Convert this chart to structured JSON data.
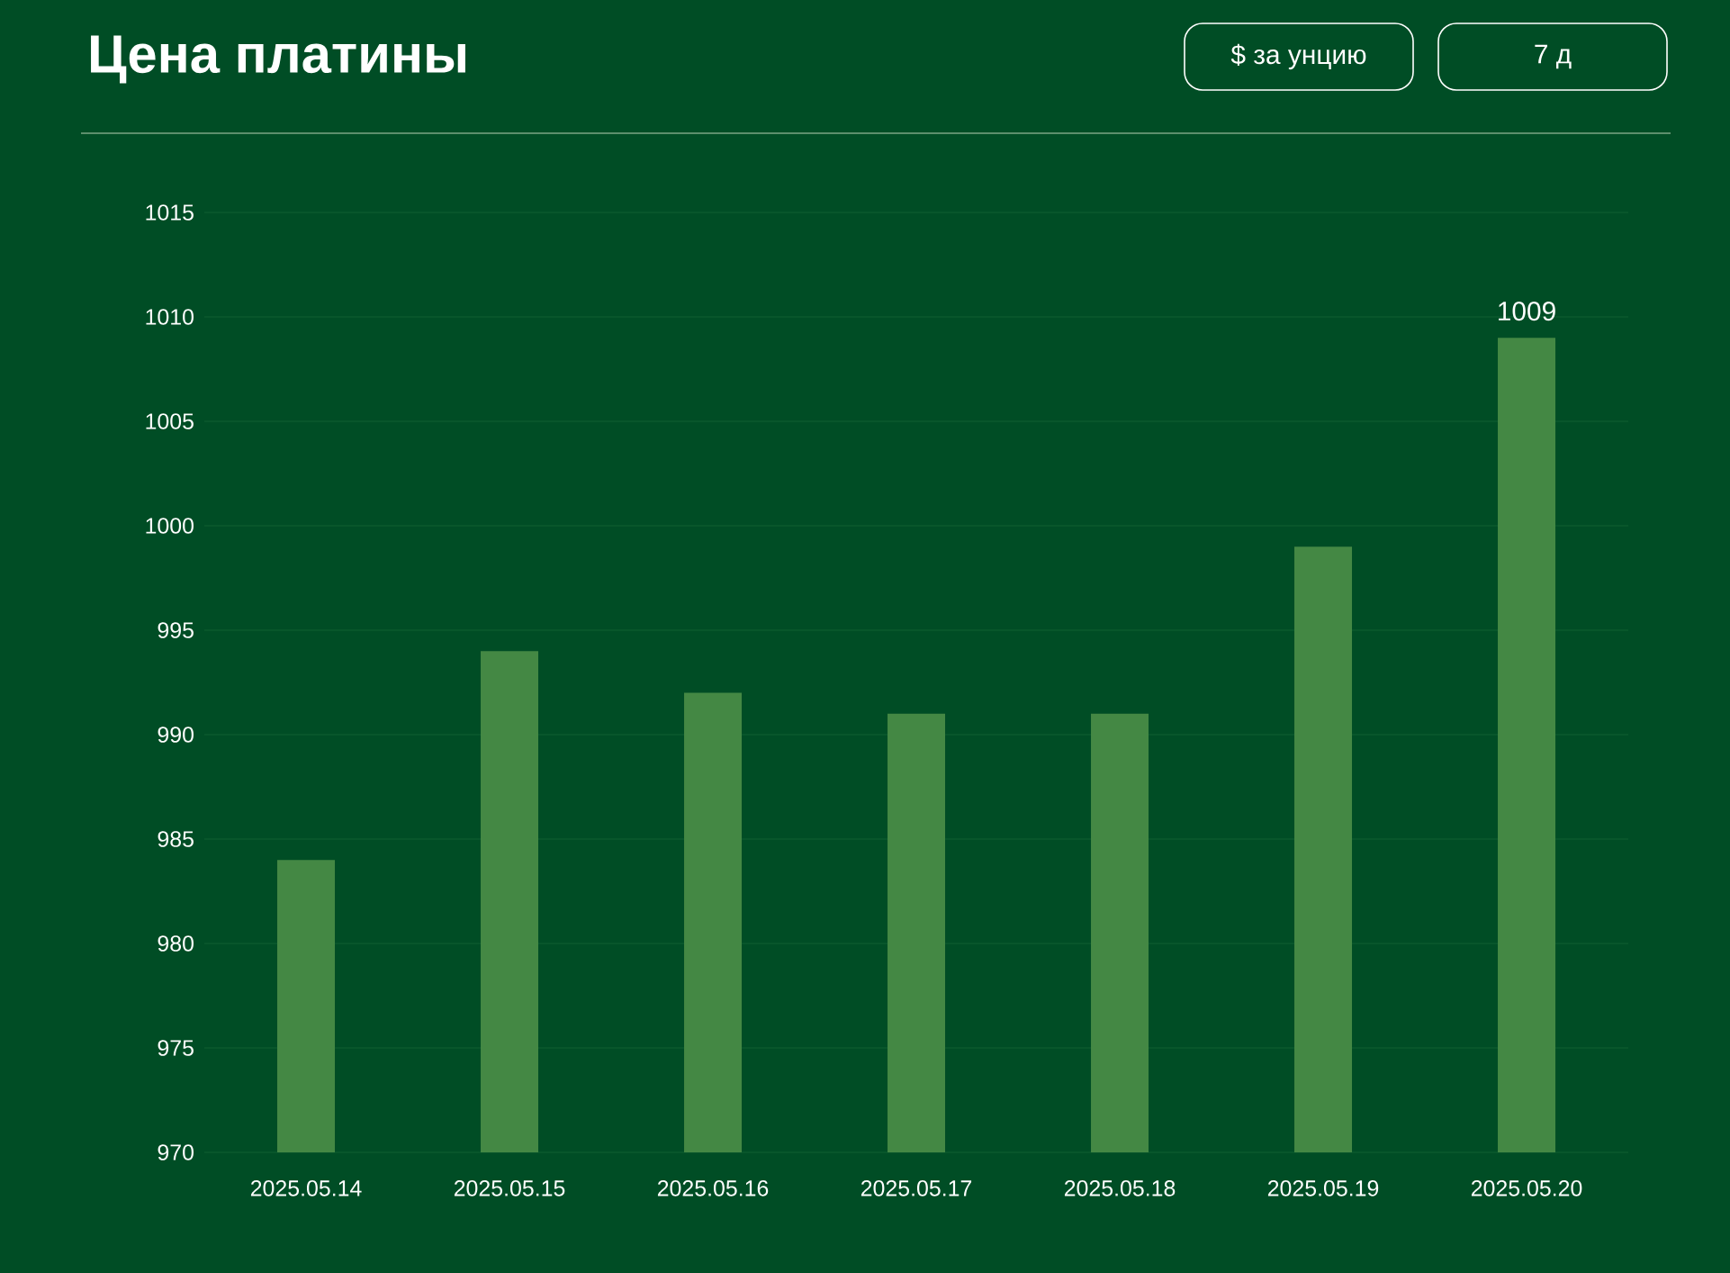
{
  "chart_data": {
    "type": "bar",
    "title": "Цена платины",
    "annotations": [
      "$ за унцию",
      "7 д"
    ],
    "categories": [
      "2025.05.14",
      "2025.05.15",
      "2025.05.16",
      "2025.05.17",
      "2025.05.18",
      "2025.05.19",
      "2025.05.20"
    ],
    "values": [
      984,
      994,
      992,
      991,
      991,
      999,
      1009
    ],
    "value_labels": [
      null,
      null,
      null,
      null,
      null,
      null,
      "1009"
    ],
    "color": "#448844",
    "ylim": [
      970,
      1015
    ],
    "yticks": [
      970,
      975,
      980,
      985,
      990,
      995,
      1000,
      1005,
      1010,
      1015
    ],
    "grid": "y"
  }
}
